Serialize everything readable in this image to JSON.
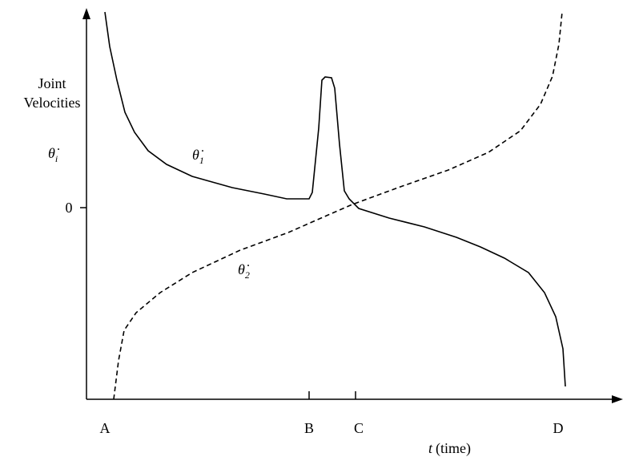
{
  "axis": {
    "y_label_line1": "Joint",
    "y_label_line2": "Velocities",
    "zero": "0",
    "x_label_var": "t",
    "x_label_unit": "(time)"
  },
  "points": [
    "A",
    "B",
    "C",
    "D"
  ],
  "symbols": [
    {
      "symbol": "θ̇",
      "subscript": "i"
    },
    {
      "symbol": "θ̇",
      "subscript": "1"
    },
    {
      "symbol": "θ̇",
      "subscript": "2"
    }
  ]
}
